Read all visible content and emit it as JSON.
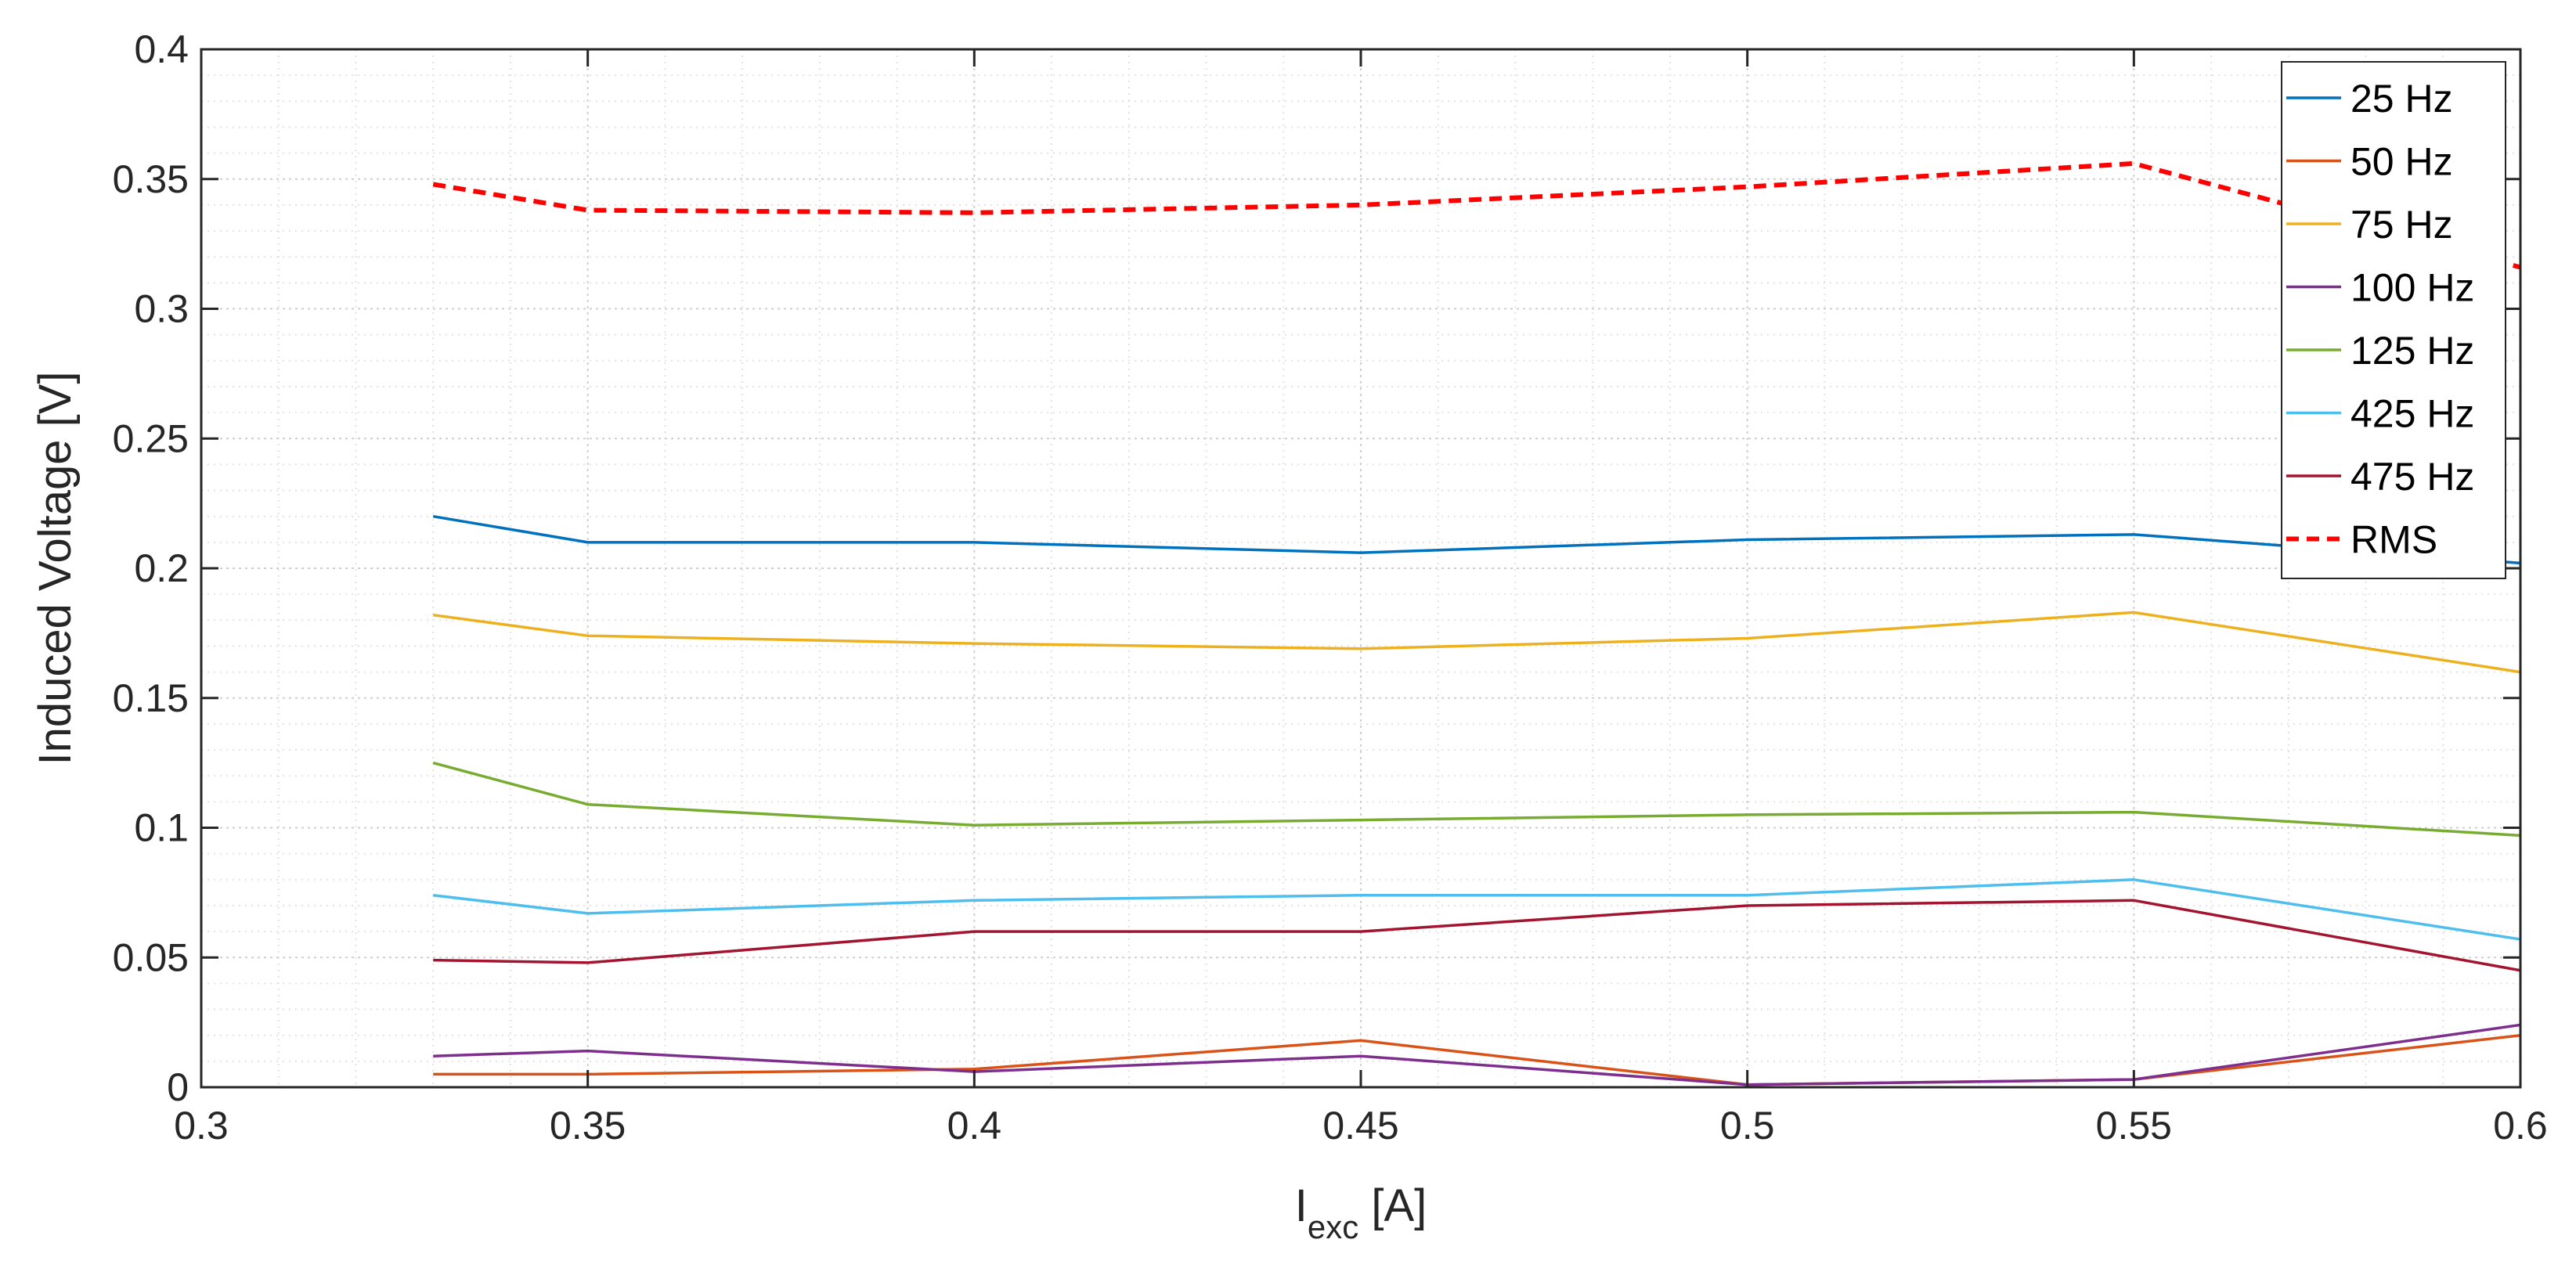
{
  "chart_data": {
    "type": "line",
    "xlabel_main": "I",
    "xlabel_sub": "exc",
    "xlabel_unit": " [A]",
    "ylabel": "Induced Voltage [V]",
    "xlim": [
      0.3,
      0.6
    ],
    "ylim": [
      0,
      0.4
    ],
    "grid": true,
    "minor_grid": true,
    "legend_position": "top-right",
    "x_ticks": [
      0.3,
      0.35,
      0.4,
      0.45,
      0.5,
      0.55,
      0.6
    ],
    "x_tick_labels": [
      "0.3",
      "0.35",
      "0.4",
      "0.45",
      "0.5",
      "0.55",
      "0.6"
    ],
    "y_ticks": [
      0,
      0.05,
      0.1,
      0.15,
      0.2,
      0.25,
      0.3,
      0.35,
      0.4
    ],
    "y_tick_labels": [
      "0",
      "0.05",
      "0.1",
      "0.15",
      "0.2",
      "0.25",
      "0.3",
      "0.35",
      "0.4"
    ],
    "x": [
      0.33,
      0.35,
      0.4,
      0.45,
      0.5,
      0.55,
      0.6
    ],
    "series": [
      {
        "name": "25 Hz",
        "color": "#0072BD",
        "dashed": false,
        "values": [
          0.22,
          0.21,
          0.21,
          0.206,
          0.211,
          0.213,
          0.202
        ]
      },
      {
        "name": "50 Hz",
        "color": "#D95319",
        "dashed": false,
        "values": [
          0.005,
          0.005,
          0.007,
          0.018,
          0.001,
          0.003,
          0.02
        ]
      },
      {
        "name": "75 Hz",
        "color": "#EDB120",
        "dashed": false,
        "values": [
          0.182,
          0.174,
          0.171,
          0.169,
          0.173,
          0.183,
          0.16
        ]
      },
      {
        "name": "100 Hz",
        "color": "#7E2F8E",
        "dashed": false,
        "values": [
          0.012,
          0.014,
          0.006,
          0.012,
          0.001,
          0.003,
          0.024
        ]
      },
      {
        "name": "125 Hz",
        "color": "#77AC30",
        "dashed": false,
        "values": [
          0.125,
          0.109,
          0.101,
          0.103,
          0.105,
          0.106,
          0.097
        ]
      },
      {
        "name": "425 Hz",
        "color": "#4DBEEE",
        "dashed": false,
        "values": [
          0.074,
          0.067,
          0.072,
          0.074,
          0.074,
          0.08,
          0.057
        ]
      },
      {
        "name": "475 Hz",
        "color": "#A2142F",
        "dashed": false,
        "values": [
          0.049,
          0.048,
          0.06,
          0.06,
          0.07,
          0.072,
          0.045
        ]
      },
      {
        "name": "RMS",
        "color": "#FF0000",
        "dashed": true,
        "values": [
          0.348,
          0.338,
          0.337,
          0.34,
          0.347,
          0.356,
          0.316
        ]
      }
    ]
  }
}
